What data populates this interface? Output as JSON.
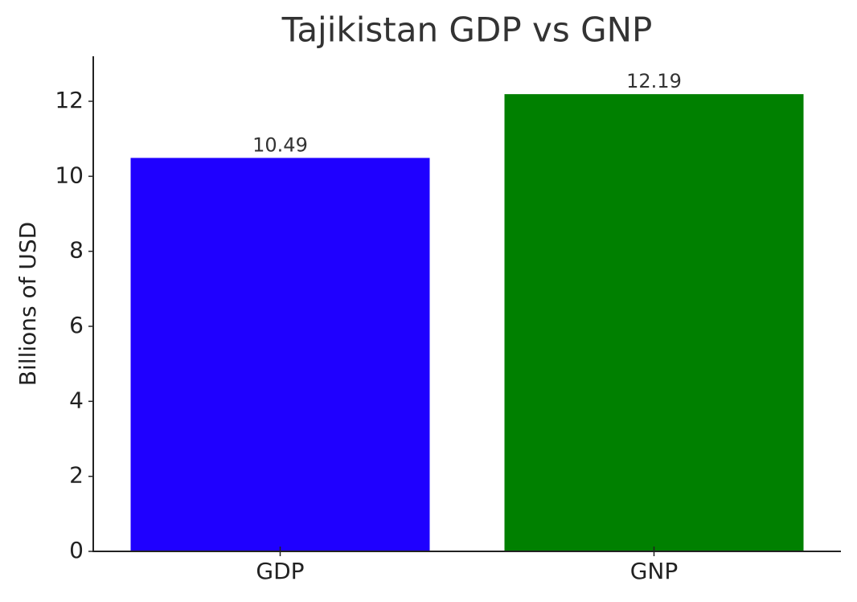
{
  "chart_data": {
    "type": "bar",
    "title": "Tajikistan GDP vs GNP",
    "y_label": "Billions of USD",
    "categories": [
      "GDP",
      "GNP"
    ],
    "values": [
      10.49,
      12.19
    ],
    "colors": [
      "#1f00ff",
      "#008000"
    ],
    "ylim": [
      0,
      13.2
    ],
    "yticks": [
      0,
      2,
      4,
      6,
      8,
      10,
      12
    ],
    "grid": false
  }
}
